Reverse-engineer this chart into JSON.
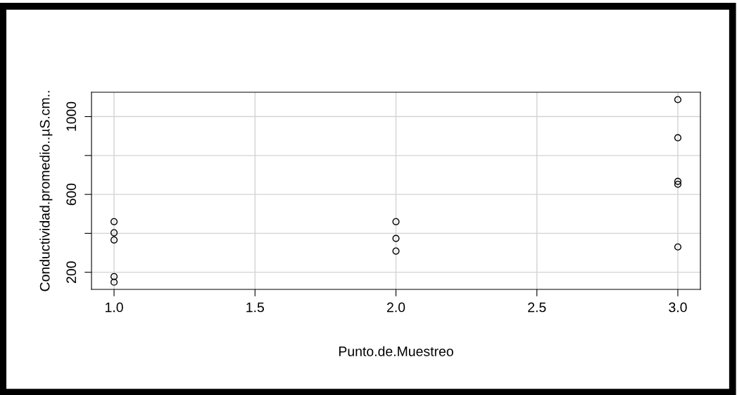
{
  "chart_data": {
    "type": "scatter",
    "xlabel": "Punto.de.Muestreo",
    "ylabel": "Conductividad.promedio..µS.cm..",
    "x": [
      1,
      1,
      1,
      1,
      1,
      2,
      2,
      2,
      3,
      3,
      3,
      3,
      3
    ],
    "values": [
      460,
      403,
      366,
      178,
      149,
      460,
      374,
      309,
      1087,
      891,
      667,
      652,
      330
    ],
    "color": "#000000",
    "marker": "circle",
    "grid": true,
    "xlim": [
      0.92,
      3.08
    ],
    "xticks": [
      {
        "value": 1,
        "label": "1.0"
      },
      {
        "value": 1.5,
        "label": "1.5"
      },
      {
        "value": 2,
        "label": "2.0"
      },
      {
        "value": 2.5,
        "label": "2.5"
      },
      {
        "value": 3,
        "label": "3.0"
      }
    ],
    "ylim": [
      112,
      1125
    ],
    "yticks": [
      200,
      {
        "value": 400,
        "label": null
      },
      600,
      {
        "value": 800,
        "label": null
      },
      1000
    ]
  }
}
